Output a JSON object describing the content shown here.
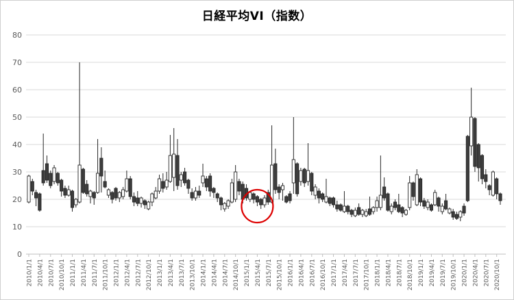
{
  "chart": {
    "title": "日経平均VI（指数）",
    "colors": {
      "up_body_fill": "#ffffff",
      "down_body_fill": "#3d3d3d",
      "candle_stroke": "#262626",
      "gridline": "#d9d9d9",
      "axis_line": "#bfbfbf",
      "axis_text": "#595959",
      "annotation_red": "#dd0000",
      "title_text": "#000000"
    }
  },
  "chart_data": {
    "type": "candlestick",
    "title": "日経平均VI（指数）",
    "xlabel": "",
    "ylabel": "",
    "ylim": [
      0,
      80
    ],
    "grid": true,
    "legend": "none",
    "y_ticks": [
      0,
      10,
      20,
      30,
      40,
      50,
      60,
      70,
      80
    ],
    "x_tick_labels": [
      "2010/1/1",
      "2010/4/1",
      "2010/7/1",
      "2010/10/1",
      "2011/1/1",
      "2011/4/1",
      "2011/7/1",
      "2011/10/1",
      "2012/1/1",
      "2012/4/1",
      "2012/7/1",
      "2012/10/1",
      "2013/1/1",
      "2013/4/1",
      "2013/7/1",
      "2013/10/1",
      "2014/1/1",
      "2014/4/1",
      "2014/7/1",
      "2014/10/1",
      "2015/1/1",
      "2015/4/1",
      "2015/7/1",
      "2015/10/1",
      "2016/1/1",
      "2016/4/1",
      "2016/7/1",
      "2016/10/1",
      "2017/1/1",
      "2017/4/1",
      "2017/7/1",
      "2017/10/1",
      "2018/1/1",
      "2018/4/1",
      "2018/7/1",
      "2018/10/1",
      "2019/1/1",
      "2019/4/1",
      "2019/7/1",
      "2019/10/1",
      "2020/1/1",
      "2020/4/1",
      "2020/7/1",
      "2020/10/1"
    ],
    "columns": [
      "date",
      "open",
      "high",
      "low",
      "close"
    ],
    "series": [
      [
        "2010/1/1",
        19,
        29,
        18.5,
        28.5
      ],
      [
        "2010/2/1",
        26.5,
        27.5,
        21.5,
        23
      ],
      [
        "2010/3/1",
        22.5,
        23.5,
        17.5,
        20.5
      ],
      [
        "2010/4/1",
        22,
        22.5,
        15.5,
        16
      ],
      [
        "2010/5/1",
        30.5,
        44,
        25,
        26
      ],
      [
        "2010/6/1",
        33,
        36,
        26,
        27
      ],
      [
        "2010/7/1",
        29.5,
        30.5,
        24,
        25
      ],
      [
        "2010/8/1",
        26.5,
        32.5,
        25.5,
        31.5
      ],
      [
        "2010/9/1",
        29.5,
        30,
        25,
        26
      ],
      [
        "2010/10/1",
        27,
        27.5,
        21,
        23
      ],
      [
        "2010/11/1",
        24,
        25,
        20.5,
        21.5
      ],
      [
        "2010/12/1",
        21.5,
        25,
        21,
        23.5
      ],
      [
        "2011/1/1",
        23,
        23.5,
        15.5,
        17
      ],
      [
        "2011/2/1",
        18,
        20.5,
        17,
        20
      ],
      [
        "2011/3/1",
        19,
        70,
        18.5,
        32.5
      ],
      [
        "2011/4/1",
        31,
        31.5,
        22,
        22.5
      ],
      [
        "2011/5/1",
        25.5,
        27,
        21,
        22
      ],
      [
        "2011/6/1",
        21,
        23.5,
        18.5,
        23
      ],
      [
        "2011/7/1",
        22.5,
        23,
        18,
        20.5
      ],
      [
        "2011/8/1",
        22.5,
        42,
        22,
        29.5
      ],
      [
        "2011/9/1",
        35,
        39,
        22.5,
        28.5
      ],
      [
        "2011/10/1",
        26.5,
        30.5,
        24,
        24.5
      ],
      [
        "2011/11/1",
        21.5,
        24,
        20.5,
        23.5
      ],
      [
        "2011/12/1",
        22.5,
        23,
        18.5,
        20
      ],
      [
        "2012/1/1",
        24,
        24.5,
        19.5,
        20.5
      ],
      [
        "2012/2/1",
        20.5,
        23,
        19,
        22.5
      ],
      [
        "2012/3/1",
        21,
        24.5,
        20,
        23.5
      ],
      [
        "2012/4/1",
        23,
        30.5,
        22.5,
        27.5
      ],
      [
        "2012/5/1",
        27.5,
        28.5,
        20,
        21
      ],
      [
        "2012/6/1",
        21,
        22.5,
        17.5,
        19
      ],
      [
        "2012/7/1",
        20.5,
        23,
        17.5,
        18.5
      ],
      [
        "2012/8/1",
        18.5,
        21,
        17,
        20.5
      ],
      [
        "2012/9/1",
        19.5,
        20,
        16.5,
        18
      ],
      [
        "2012/10/1",
        16.5,
        19.5,
        16,
        19
      ],
      [
        "2012/11/1",
        19,
        22.5,
        17.5,
        22
      ],
      [
        "2012/12/1",
        20.5,
        24.5,
        20,
        23
      ],
      [
        "2013/1/1",
        23,
        29,
        22,
        27.5
      ],
      [
        "2013/2/1",
        26.5,
        29.5,
        22.5,
        24
      ],
      [
        "2013/3/1",
        24.5,
        30,
        23.5,
        27
      ],
      [
        "2013/4/1",
        26.5,
        43.5,
        26,
        36
      ],
      [
        "2013/5/1",
        28,
        46,
        23,
        36.5
      ],
      [
        "2013/6/1",
        36,
        42,
        23.5,
        25
      ],
      [
        "2013/7/1",
        27,
        30,
        24.5,
        29
      ],
      [
        "2013/8/1",
        30,
        31.5,
        25,
        26
      ],
      [
        "2013/9/1",
        27,
        27.5,
        22,
        24
      ],
      [
        "2013/10/1",
        22.5,
        24,
        19.5,
        20.5
      ],
      [
        "2013/11/1",
        20.5,
        24.5,
        19.5,
        23
      ],
      [
        "2013/12/1",
        23,
        25,
        20.5,
        21.5
      ],
      [
        "2014/1/1",
        26,
        33,
        24.5,
        28.5
      ],
      [
        "2014/2/1",
        27.5,
        28.5,
        23,
        24.5
      ],
      [
        "2014/3/1",
        28.5,
        29.5,
        21,
        23
      ],
      [
        "2014/4/1",
        24,
        24.5,
        20.5,
        22.5
      ],
      [
        "2014/5/1",
        22,
        22.5,
        19,
        20.5
      ],
      [
        "2014/6/1",
        20.5,
        21,
        16,
        18
      ],
      [
        "2014/7/1",
        16.5,
        19,
        15.5,
        18.5
      ],
      [
        "2014/8/1",
        17.5,
        20,
        16.5,
        19.5
      ],
      [
        "2014/9/1",
        19,
        27.5,
        18.5,
        26
      ],
      [
        "2014/10/1",
        20,
        32.5,
        19,
        30
      ],
      [
        "2014/11/1",
        26.5,
        27.5,
        21.5,
        23
      ],
      [
        "2014/12/1",
        25.5,
        26.5,
        18.5,
        20
      ],
      [
        "2015/1/1",
        24,
        25.5,
        19.5,
        20.5
      ],
      [
        "2015/2/1",
        20,
        23,
        19,
        22.5
      ],
      [
        "2015/3/1",
        22,
        22.5,
        18.5,
        20
      ],
      [
        "2015/4/1",
        21,
        21.5,
        17.5,
        19
      ],
      [
        "2015/5/1",
        20,
        20.5,
        16.5,
        18
      ],
      [
        "2015/6/1",
        18,
        21.5,
        17,
        20.5
      ],
      [
        "2015/7/1",
        22.5,
        23.5,
        18,
        19
      ],
      [
        "2015/8/1",
        19,
        47,
        18.5,
        32.5
      ],
      [
        "2015/9/1",
        33,
        38.5,
        22,
        23.5
      ],
      [
        "2015/10/1",
        24.5,
        25.5,
        20,
        22.5
      ],
      [
        "2015/11/1",
        23.5,
        26,
        19.5,
        25
      ],
      [
        "2015/12/1",
        21,
        21.5,
        18.5,
        19
      ],
      [
        "2016/1/1",
        22,
        23,
        18.5,
        19.5
      ],
      [
        "2016/2/1",
        26,
        50,
        22,
        34.5
      ],
      [
        "2016/3/1",
        33,
        33.5,
        21,
        22
      ],
      [
        "2016/4/1",
        26.5,
        31.5,
        25,
        30.5
      ],
      [
        "2016/5/1",
        31,
        31.5,
        24.5,
        26
      ],
      [
        "2016/6/1",
        26.5,
        40.5,
        25,
        30.5
      ],
      [
        "2016/7/1",
        29.5,
        30,
        21.5,
        23
      ],
      [
        "2016/8/1",
        21.5,
        25.5,
        20,
        24.5
      ],
      [
        "2016/9/1",
        23,
        24,
        18.5,
        20.5
      ],
      [
        "2016/10/1",
        22,
        22.5,
        19,
        20
      ],
      [
        "2016/11/1",
        19,
        27.5,
        18.5,
        21
      ],
      [
        "2016/12/1",
        20.5,
        21,
        17.5,
        18.5
      ],
      [
        "2017/1/1",
        20.5,
        21,
        17,
        18
      ],
      [
        "2017/2/1",
        18,
        19.5,
        15.5,
        16.5
      ],
      [
        "2017/3/1",
        18,
        18.5,
        15.5,
        16
      ],
      [
        "2017/4/1",
        15.5,
        23,
        15,
        17.5
      ],
      [
        "2017/5/1",
        17.5,
        18,
        14.5,
        15.5
      ],
      [
        "2017/6/1",
        16,
        16.5,
        13.5,
        14.5
      ],
      [
        "2017/7/1",
        14,
        17,
        13.5,
        16
      ],
      [
        "2017/8/1",
        17,
        18.5,
        14,
        14.5
      ],
      [
        "2017/9/1",
        14.5,
        16.5,
        13.5,
        16
      ],
      [
        "2017/10/1",
        14,
        16.5,
        13.5,
        15.5
      ],
      [
        "2017/11/1",
        16.5,
        21,
        14,
        14.5
      ],
      [
        "2017/12/1",
        15.5,
        17.5,
        14.5,
        17
      ],
      [
        "2018/1/1",
        17,
        21,
        15.5,
        19.5
      ],
      [
        "2018/2/1",
        17,
        36,
        16,
        21.5
      ],
      [
        "2018/3/1",
        24.5,
        28,
        19.5,
        20.5
      ],
      [
        "2018/4/1",
        22,
        22.5,
        15.5,
        16
      ],
      [
        "2018/5/1",
        15.5,
        18.5,
        14.5,
        17.5
      ],
      [
        "2018/6/1",
        19,
        20,
        16,
        17
      ],
      [
        "2018/7/1",
        18,
        22,
        15,
        15.5
      ],
      [
        "2018/8/1",
        17,
        17.5,
        13.5,
        15
      ],
      [
        "2018/9/1",
        14.5,
        16.5,
        14,
        16
      ],
      [
        "2018/10/1",
        17,
        28.5,
        16,
        26
      ],
      [
        "2018/11/1",
        26,
        26.5,
        19.5,
        21
      ],
      [
        "2018/12/1",
        18,
        31,
        17.5,
        29
      ],
      [
        "2019/1/1",
        27.5,
        28,
        17.5,
        19
      ],
      [
        "2019/2/1",
        19.5,
        20.5,
        16.5,
        17.5
      ],
      [
        "2019/3/1",
        17,
        20,
        16,
        19
      ],
      [
        "2019/4/1",
        18,
        18.5,
        15.5,
        16
      ],
      [
        "2019/5/1",
        18,
        23.5,
        17.5,
        22.5
      ],
      [
        "2019/6/1",
        20.5,
        21,
        15.5,
        17.5
      ],
      [
        "2019/7/1",
        15.5,
        18.5,
        14.5,
        17.5
      ],
      [
        "2019/8/1",
        19.5,
        22,
        16,
        16.5
      ],
      [
        "2019/9/1",
        15,
        17,
        14.5,
        16.5
      ],
      [
        "2019/10/1",
        15.5,
        16.5,
        12.5,
        13.5
      ],
      [
        "2019/11/1",
        14.5,
        15.5,
        12.5,
        13
      ],
      [
        "2019/12/1",
        13.5,
        16,
        12,
        15.5
      ],
      [
        "2020/1/1",
        17.5,
        18.5,
        14,
        15
      ],
      [
        "2020/2/1",
        43,
        43.5,
        19,
        19.5
      ],
      [
        "2020/3/1",
        39.5,
        60.75,
        36,
        50
      ],
      [
        "2020/4/1",
        49.5,
        50,
        30,
        32
      ],
      [
        "2020/5/1",
        40,
        40.5,
        26.5,
        31.5
      ],
      [
        "2020/6/1",
        36,
        36.5,
        25.5,
        27.5
      ],
      [
        "2020/7/1",
        29,
        31,
        24,
        26.5
      ],
      [
        "2020/8/1",
        25,
        25.5,
        21.5,
        23.5
      ],
      [
        "2020/9/1",
        21.5,
        30.5,
        21,
        30
      ],
      [
        "2020/10/1",
        27.5,
        28,
        20,
        22
      ],
      [
        "2020/11/1",
        22,
        22.5,
        18,
        19.5
      ]
    ],
    "annotation": {
      "shape": "ellipse",
      "center_date": "2015/4/1",
      "center_value": 17.5,
      "radius_x_px": 23,
      "radius_y_px": 24,
      "color": "#dd0000",
      "meaning": "highlight of low-volatility period around 2015/4"
    }
  }
}
